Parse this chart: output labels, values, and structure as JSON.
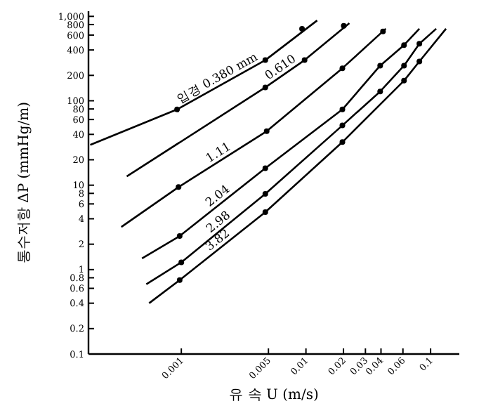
{
  "chart_data": {
    "type": "line",
    "xlabel": "유 속 U (m/s)",
    "ylabel": "통수저항 ΔP (mmHg/m)",
    "log": "xy",
    "xlim": [
      0.00018,
      0.17
    ],
    "ylim": [
      0.1,
      1150
    ],
    "xticks": [
      0.001,
      0.005,
      0.01,
      0.02,
      0.03,
      0.04,
      0.06,
      0.1
    ],
    "yticks": [
      0.1,
      0.2,
      0.4,
      0.6,
      0.8,
      1,
      2,
      4,
      6,
      8,
      10,
      20,
      40,
      60,
      80,
      100,
      200,
      400,
      600,
      800,
      {
        "value": 1000,
        "label": "1,000"
      }
    ],
    "series": [
      {
        "name": "입경 0.380 mm",
        "color": "#000000",
        "x": [
          0.000186,
          0.000925,
          0.00472,
          0.0123
        ],
        "values": [
          30,
          79,
          303,
          894
        ]
      },
      {
        "name": "0.610",
        "color": "#000000",
        "x": [
          0.000365,
          0.00472,
          0.00975,
          0.0223
        ],
        "values": [
          12.7,
          144,
          303,
          830
        ]
      },
      {
        "name": "1.11",
        "color": "#000000",
        "x": [
          0.00033,
          0.00095,
          0.00484,
          0.0196,
          0.0437
        ],
        "values": [
          3.2,
          9.5,
          43.6,
          243,
          714
        ]
      },
      {
        "name": "2.04",
        "color": "#000000",
        "x": [
          0.000484,
          0.00097,
          0.00472,
          0.0196,
          0.0394,
          0.0612,
          0.0813
        ],
        "values": [
          1.36,
          2.5,
          15.9,
          79,
          261,
          457,
          714
        ]
      },
      {
        "name": "2.98",
        "color": "#000000",
        "x": [
          0.000524,
          0.001,
          0.00472,
          0.0196,
          0.0394,
          0.0612,
          0.0813,
          0.111
        ],
        "values": [
          0.67,
          1.22,
          7.9,
          51,
          129,
          261,
          474,
          714
        ]
      },
      {
        "name": "3.82",
        "color": "#000000",
        "x": [
          0.000552,
          0.00097,
          0.00472,
          0.0196,
          0.0612,
          0.0813,
          0.133
        ],
        "values": [
          0.4,
          0.75,
          4.8,
          32.4,
          173,
          292,
          714
        ]
      },
      {
        "type": "scatter",
        "marker": "circle",
        "color": "#000000",
        "x": [
          0.000925,
          0.00472,
          0.0093,
          0.00472,
          0.00975,
          0.0201,
          0.00095,
          0.00484,
          0.0196,
          0.0415,
          0.00097,
          0.00472,
          0.0196,
          0.0394,
          0.0612,
          0.001,
          0.00472,
          0.0196,
          0.0394,
          0.0612,
          0.0813,
          0.00097,
          0.00472,
          0.0196,
          0.0612,
          0.0813
        ],
        "values": [
          79,
          303,
          714,
          144,
          303,
          771,
          9.5,
          43.6,
          243,
          664,
          2.5,
          15.9,
          79,
          261,
          457,
          1.22,
          7.9,
          51,
          129,
          261,
          474,
          0.75,
          4.8,
          32.4,
          173,
          292
        ]
      }
    ]
  }
}
